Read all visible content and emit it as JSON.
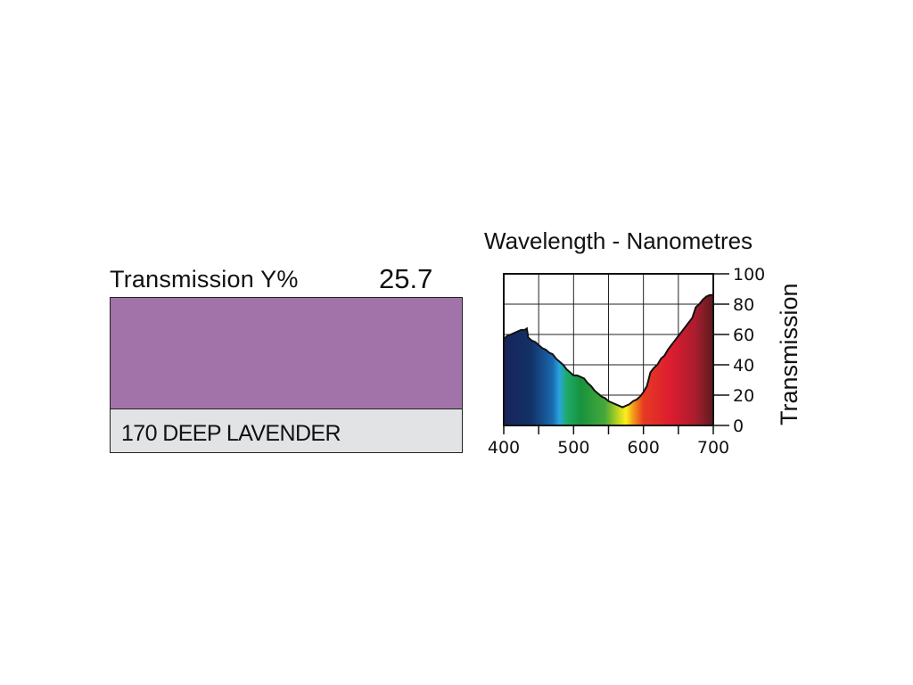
{
  "filter": {
    "transmission_label": "Transmission Y%",
    "transmission_value": "25.7",
    "name": "170 DEEP LAVENDER",
    "swatch_color": "#a173a9"
  },
  "chart_data": {
    "type": "area",
    "title": "Wavelength - Nanometres",
    "xlabel": "",
    "ylabel": "Transmission",
    "xlim": [
      400,
      700
    ],
    "ylim": [
      0,
      100
    ],
    "xticks": [
      400,
      500,
      600,
      700
    ],
    "yticks": [
      0,
      20,
      40,
      60,
      80,
      100
    ],
    "grid": true,
    "series": [
      {
        "x": [
          400,
          405,
          410,
          415,
          420,
          425,
          430,
          433,
          435,
          440,
          445,
          450,
          455,
          460,
          465,
          470,
          475,
          480,
          485,
          490,
          495,
          500,
          505,
          510,
          515,
          520,
          525,
          530,
          535,
          540,
          545,
          550,
          555,
          560,
          565,
          570,
          575,
          580,
          585,
          590,
          595,
          600,
          605,
          610,
          615,
          620,
          625,
          630,
          635,
          640,
          645,
          650,
          655,
          660,
          665,
          670,
          675,
          680,
          685,
          690,
          695,
          700
        ],
        "y": [
          57,
          59,
          60,
          61,
          62,
          63,
          63,
          64,
          58,
          56,
          55,
          53,
          51,
          50,
          48,
          47,
          44,
          42,
          40,
          37,
          35,
          33,
          33,
          32,
          31,
          28,
          26,
          23,
          21,
          19,
          18,
          16,
          15,
          14,
          13,
          12,
          13,
          14,
          16,
          17,
          19,
          22,
          26,
          35,
          38,
          40,
          44,
          46,
          50,
          53,
          56,
          59,
          62,
          65,
          68,
          71,
          78,
          80,
          83,
          85,
          86,
          86
        ]
      }
    ],
    "spectrum_colors": [
      {
        "x": 400,
        "color": "#18235a"
      },
      {
        "x": 440,
        "color": "#123268"
      },
      {
        "x": 470,
        "color": "#1a6ab0"
      },
      {
        "x": 480,
        "color": "#29a6de"
      },
      {
        "x": 490,
        "color": "#1eaa6a"
      },
      {
        "x": 510,
        "color": "#17923e"
      },
      {
        "x": 545,
        "color": "#47a83a"
      },
      {
        "x": 565,
        "color": "#c6d81e"
      },
      {
        "x": 575,
        "color": "#fbee1e"
      },
      {
        "x": 585,
        "color": "#f39c1a"
      },
      {
        "x": 600,
        "color": "#e63a22"
      },
      {
        "x": 640,
        "color": "#dc1c31"
      },
      {
        "x": 675,
        "color": "#a91d2e"
      },
      {
        "x": 700,
        "color": "#5a1c1e"
      }
    ]
  }
}
